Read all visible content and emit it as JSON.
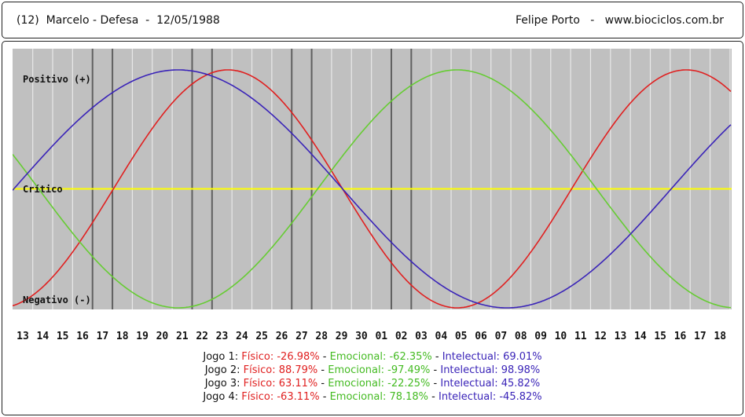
{
  "header": {
    "left_text": "(12)  Marcelo - Defesa  -  12/05/1988",
    "right_text": "Felipe Porto   -   www.biociclos.com.br"
  },
  "colors": {
    "background": "#c0c0c0",
    "grid_light": "#e8e8e8",
    "grid_dark": "#606060",
    "critical_line": "#ffff00",
    "fisico": "#e02020",
    "emocional": "#66cc33",
    "intelectual": "#3a24b8"
  },
  "chart_data": {
    "type": "line",
    "x": [
      "13",
      "14",
      "15",
      "16",
      "17",
      "18",
      "19",
      "20",
      "21",
      "22",
      "23",
      "24",
      "25",
      "26",
      "27",
      "28",
      "29",
      "30",
      "01",
      "02",
      "03",
      "04",
      "05",
      "06",
      "07",
      "08",
      "09",
      "10",
      "11",
      "12",
      "13",
      "14",
      "15",
      "16",
      "17",
      "18"
    ],
    "ylim": [
      -100,
      100
    ],
    "y_labels": {
      "positive": "Positivo (+)",
      "critical": "Crítico",
      "negative": "Negativo (-)"
    },
    "grid": true,
    "marker_lines_after_index": [
      3,
      4,
      8,
      9,
      13,
      14,
      18,
      19
    ],
    "series": [
      {
        "name": "Físico",
        "color": "#e02020",
        "period_days": 23,
        "peak_x_index": 10.3
      },
      {
        "name": "Emocional",
        "color": "#66cc33",
        "period_days": 28,
        "peak_x_index": 21.8
      },
      {
        "name": "Intelectual",
        "color": "#3a24b8",
        "period_days": 33,
        "peak_x_index": 7.8
      }
    ]
  },
  "jogos": [
    {
      "label": "Jogo 1:",
      "fisico": "Físico: -26.98%",
      "emocional": "Emocional: -62.35%",
      "intelectual": "Intelectual: 69.01%"
    },
    {
      "label": "Jogo 2:",
      "fisico": "Físico: 88.79%",
      "emocional": "Emocional: -97.49%",
      "intelectual": "Intelectual: 98.98%"
    },
    {
      "label": "Jogo 3:",
      "fisico": "Físico: 63.11%",
      "emocional": "Emocional: -22.25%",
      "intelectual": "Intelectual: 45.82%"
    },
    {
      "label": "Jogo 4:",
      "fisico": "Físico: -63.11%",
      "emocional": "Emocional: 78.18%",
      "intelectual": "Intelectual: -45.82%"
    }
  ],
  "separator": " - "
}
